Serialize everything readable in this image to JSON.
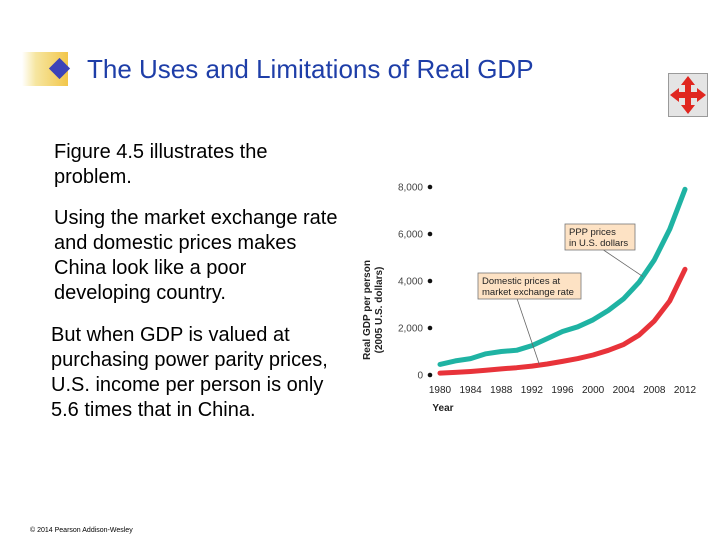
{
  "slide": {
    "title": "The Uses and Limitations of Real GDP",
    "paragraphs": [
      "Figure 4.5 illustrates the problem.",
      "Using the market exchange rate and domestic prices makes China look like a poor developing country.",
      "But when GDP is valued at purchasing power parity prices, U.S. income per person is only 5.6 times that in China."
    ],
    "copyright": "© 2014 Pearson Addison-Wesley",
    "nav_icon": "four-arrows-icon"
  },
  "colors": {
    "title_text": "#1e3ea8",
    "diamond": "#3c43b8",
    "ppp_line": "#1fb3a3",
    "domestic_line": "#e8333a",
    "nav_arrows": "#e0261f"
  },
  "chart_data": {
    "type": "line",
    "x": [
      1980,
      1982,
      1984,
      1986,
      1988,
      1990,
      1992,
      1994,
      1996,
      1998,
      2000,
      2002,
      2004,
      2006,
      2008,
      2010,
      2012
    ],
    "x_tick_labels": [
      "1980",
      "1984",
      "1988",
      "1992",
      "1996",
      "2000",
      "2004",
      "2008",
      "2012"
    ],
    "xlim": [
      1980,
      2012
    ],
    "xlabel": "Year",
    "ylabel_lines": [
      "Real GDP per person",
      "(2005 U.S. dollars)"
    ],
    "y_ticks": [
      0,
      2000,
      4000,
      6000,
      8000
    ],
    "y_tick_labels": [
      "0",
      "2,000",
      "4,000",
      "6,000",
      "8,000"
    ],
    "ylim": [
      0,
      8000
    ],
    "series": [
      {
        "name": "PPP prices in U.S. dollars",
        "values": [
          450,
          600,
          700,
          900,
          1000,
          1050,
          1250,
          1550,
          1850,
          2050,
          2350,
          2750,
          3250,
          3950,
          4900,
          6200,
          7900
        ]
      },
      {
        "name": "Domestic prices at market exchange rate",
        "values": [
          80,
          110,
          150,
          200,
          260,
          310,
          380,
          470,
          580,
          700,
          850,
          1050,
          1300,
          1700,
          2300,
          3150,
          4500
        ]
      }
    ],
    "annotations": [
      {
        "lines": [
          "PPP prices",
          "in U.S. dollars"
        ],
        "points_to": "PPP prices in U.S. dollars",
        "target_x": 2006.5
      },
      {
        "lines": [
          "Domestic prices at",
          "market exchange rate"
        ],
        "points_to": "Domestic prices at market exchange rate",
        "target_x": 1993
      }
    ],
    "grid": false,
    "legend": "none"
  }
}
